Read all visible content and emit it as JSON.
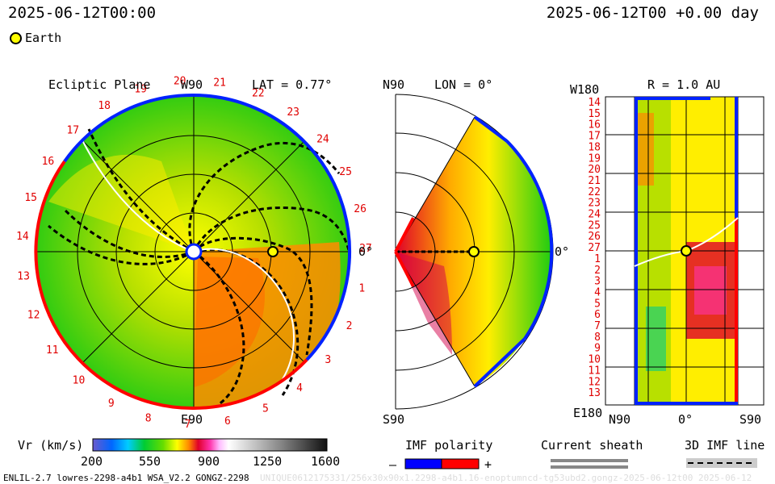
{
  "header": {
    "title_left": "2025-06-12T00:00",
    "title_right": "2025-06-12T00 +0.00 day",
    "legend_earth": "Earth"
  },
  "panels": {
    "ecliptic": {
      "title": "Ecliptic Plane",
      "top": "W90",
      "bottom": "E90",
      "right": "0°",
      "lat_label": "LAT = 0.77°",
      "sector_numbers": [
        "1",
        "2",
        "3",
        "4",
        "5",
        "6",
        "7",
        "8",
        "9",
        "10",
        "11",
        "12",
        "13",
        "14",
        "15",
        "16",
        "17",
        "18",
        "19",
        "20",
        "21",
        "22",
        "23",
        "24",
        "25",
        "26",
        "27"
      ]
    },
    "meridional": {
      "top": "N90",
      "bottom": "S90",
      "right": "0°",
      "lon_label": "LON = 0°"
    },
    "map": {
      "radius_label": "R = 1.0 AU",
      "top_left": "W180",
      "bottom_left": "E180",
      "x_left": "N90",
      "x_mid": "0°",
      "x_right": "S90",
      "row_labels": [
        "14",
        "15",
        "16",
        "17",
        "18",
        "19",
        "20",
        "21",
        "22",
        "23",
        "24",
        "25",
        "26",
        "27",
        "1",
        "2",
        "3",
        "4",
        "5",
        "6",
        "7",
        "8",
        "9",
        "10",
        "11",
        "12",
        "13"
      ]
    }
  },
  "colorbar": {
    "label": "Vr (km/s)",
    "ticks": [
      "200",
      "550",
      "900",
      "1250",
      "1600"
    ],
    "min": 200,
    "max": 1600
  },
  "imf_legend": {
    "title": "IMF polarity",
    "minus": "–",
    "plus": "+",
    "negative_color": "#0000ff",
    "positive_color": "#ff0000"
  },
  "sheath_legend": {
    "title": "Current sheath"
  },
  "imf_line_legend": {
    "title": "3D IMF line"
  },
  "footer": {
    "left": "ENLIL-2.7 lowres-2298-a4b1 WSA_V2.2 GONGZ-2298",
    "right": "UNIQUE0612175331/256x30x90x1.2298-a4b1.16-enoptumncd-tg53ubd2.gongz-2025-06-12t00 2025-06-12"
  },
  "chart_data": {
    "type": "heatmap",
    "quantity": "Vr (km/s)",
    "range": [
      200,
      1600
    ],
    "earth": {
      "r_au": 1.0,
      "lat_deg": 0.77,
      "lon_deg": 0
    }
  }
}
